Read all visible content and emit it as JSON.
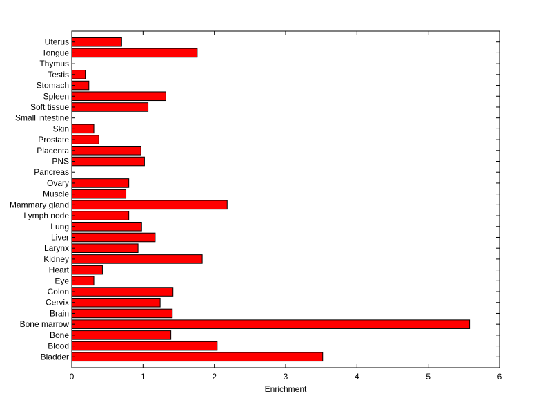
{
  "chart_data": {
    "type": "bar",
    "orientation": "horizontal",
    "xlabel": "Enrichment",
    "ylabel": "",
    "xlim": [
      0,
      6
    ],
    "xticks": [
      0,
      1,
      2,
      3,
      4,
      5,
      6
    ],
    "bar_color": "#ff0000",
    "edge_color": "#000000",
    "grid": false,
    "categories": [
      "Uterus",
      "Tongue",
      "Thymus",
      "Testis",
      "Stomach",
      "Spleen",
      "Soft tissue",
      "Small intestine",
      "Skin",
      "Prostate",
      "Placenta",
      "PNS",
      "Pancreas",
      "Ovary",
      "Muscle",
      "Mammary gland",
      "Lymph node",
      "Lung",
      "Liver",
      "Larynx",
      "Kidney",
      "Heart",
      "Eye",
      "Colon",
      "Cervix",
      "Brain",
      "Bone marrow",
      "Bone",
      "Blood",
      "Bladder"
    ],
    "values": [
      0.7,
      1.76,
      0,
      0.19,
      0.24,
      1.32,
      1.07,
      0,
      0.31,
      0.38,
      0.97,
      1.02,
      0,
      0.8,
      0.76,
      2.18,
      0.8,
      0.98,
      1.17,
      0.93,
      1.83,
      0.43,
      0.31,
      1.42,
      1.24,
      1.41,
      5.58,
      1.39,
      2.04,
      3.52
    ]
  }
}
